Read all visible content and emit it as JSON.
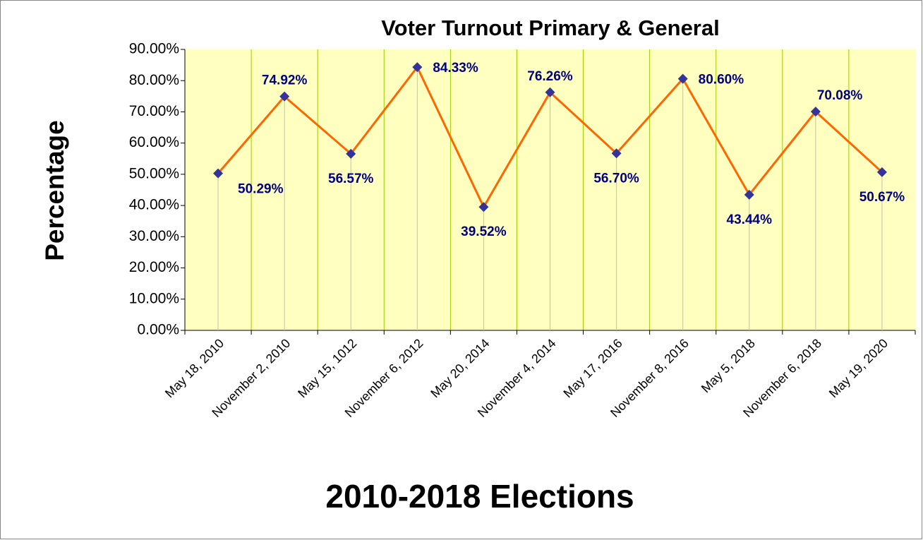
{
  "chart_data": {
    "type": "line",
    "title": "Voter Turnout Primary & General",
    "x_label": "2010-2018 Elections",
    "y_label": "Percentage",
    "categories": [
      "May 18, 2010",
      "November 2, 2010",
      "May 15, 1012",
      "November 6, 2012",
      "May 20, 2014",
      "November 4, 2014",
      "May 17, 2016",
      "November 8, 2016",
      "May 5, 2018",
      "November 6, 2018",
      "May 19, 2020"
    ],
    "values": [
      50.29,
      74.92,
      56.57,
      84.33,
      39.52,
      76.26,
      56.7,
      80.6,
      43.44,
      70.08,
      50.67
    ],
    "value_labels": [
      "50.29%",
      "74.92%",
      "56.57%",
      "84.33%",
      "39.52%",
      "76.26%",
      "56.70%",
      "80.60%",
      "43.44%",
      "70.08%",
      "50.67%"
    ],
    "color": "#ff6600",
    "marker_color": "#333399",
    "label_color": "#000080",
    "background": "#ffffc0",
    "ylim": [
      0,
      90
    ],
    "yticks": [
      {
        "value": 0,
        "label": "0.00%"
      },
      {
        "value": 10,
        "label": "10.00%"
      },
      {
        "value": 20,
        "label": "20.00%"
      },
      {
        "value": 30,
        "label": "30.00%"
      },
      {
        "value": 40,
        "label": "40.00%"
      },
      {
        "value": 50,
        "label": "50.00%"
      },
      {
        "value": 60,
        "label": "60.00%"
      },
      {
        "value": 70,
        "label": "70.00%"
      },
      {
        "value": 80,
        "label": "80.00%"
      },
      {
        "value": 90,
        "label": "90.00%"
      }
    ]
  }
}
